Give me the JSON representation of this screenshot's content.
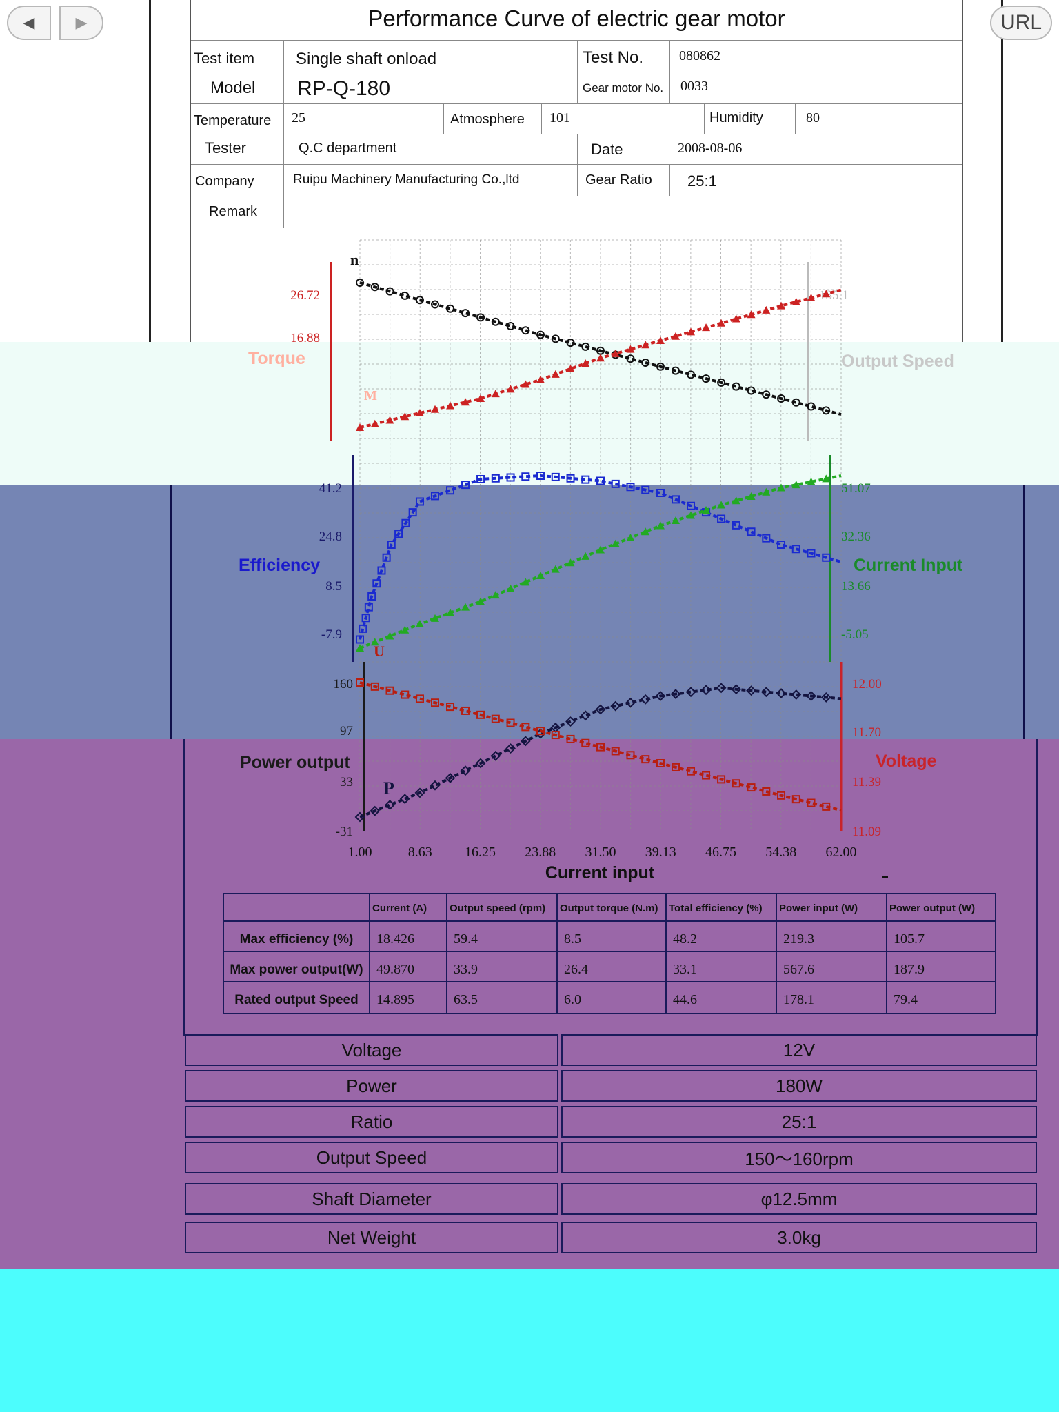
{
  "browser": {
    "back_icon": "◀",
    "forward_icon": "▶",
    "url_label": "URL"
  },
  "doc": {
    "title": "Performance Curve of electric gear motor",
    "info": {
      "test_item_label": "Test item",
      "test_item": "Single shaft onload",
      "test_no_label": "Test No.",
      "test_no": "080862",
      "model_label": "Model",
      "model": "RP-Q-180",
      "gear_motor_no_label": "Gear motor No.",
      "gear_motor_no": "0033",
      "temperature_label": "Temperature",
      "temperature": "25",
      "atmosphere_label": "Atmosphere",
      "atmosphere": "101",
      "humidity_label": "Humidity",
      "humidity": "80",
      "tester_label": "Tester",
      "tester": "Q.C department",
      "date_label": "Date",
      "date": "2008-08-06",
      "company_label": "Company",
      "company": "Ruipu Machinery Manufacturing Co.,ltd",
      "gear_ratio_label": "Gear Ratio",
      "gear_ratio": "25:1",
      "remark_label": "Remark",
      "remark": ""
    }
  },
  "chart_data": {
    "type": "line",
    "xlabel": "Current input",
    "x_ticks": [
      "1.00",
      "8.63",
      "16.25",
      "23.88",
      "31.50",
      "39.13",
      "46.75",
      "54.38",
      "62.00"
    ],
    "xlim": [
      1.0,
      62.0
    ],
    "grid": true,
    "panels": [
      {
        "left_label": "Torque",
        "right_label": "Output Speed",
        "left_ticks": [
          "26.72",
          "16.88"
        ],
        "right_ticks": [
          "135.1"
        ],
        "series": [
          {
            "name": "Output Speed",
            "marker": "circle",
            "color": "#111111",
            "x": [
              1.0,
              8.6,
              16.3,
              23.9,
              31.5,
              39.1,
              46.8,
              54.4,
              62.0
            ],
            "y": [
              1.0,
              0.88,
              0.76,
              0.64,
              0.53,
              0.42,
              0.31,
              0.2,
              0.09
            ]
          },
          {
            "name": "Torque",
            "marker": "triangle",
            "color": "#cc2222",
            "x": [
              1.0,
              8.6,
              16.3,
              23.9,
              31.5,
              39.1,
              46.8,
              54.4,
              62.0
            ],
            "y": [
              0.0,
              0.1,
              0.2,
              0.33,
              0.48,
              0.6,
              0.72,
              0.84,
              0.95
            ]
          }
        ]
      },
      {
        "left_label": "Efficiency",
        "right_label": "Current Input",
        "left_ticks": [
          "41.2",
          "24.8",
          "8.5",
          "-7.9"
        ],
        "right_ticks": [
          "51.07",
          "32.36",
          "13.66",
          "-5.05"
        ],
        "series": [
          {
            "name": "Efficiency",
            "marker": "square",
            "color": "#1a2ad0",
            "x": [
              1.0,
              2.5,
              5.0,
              8.6,
              16.3,
              23.9,
              31.5,
              39.1,
              46.8,
              54.4,
              62.0
            ],
            "y": [
              0.05,
              0.3,
              0.6,
              0.85,
              0.98,
              1.0,
              0.97,
              0.9,
              0.75,
              0.6,
              0.5
            ]
          },
          {
            "name": "Current Input",
            "marker": "triangle",
            "color": "#22aa22",
            "x": [
              1.0,
              8.6,
              16.3,
              23.9,
              31.5,
              39.1,
              46.8,
              54.4,
              62.0
            ],
            "y": [
              0.0,
              0.14,
              0.27,
              0.42,
              0.57,
              0.71,
              0.83,
              0.93,
              1.0
            ]
          }
        ]
      },
      {
        "left_label": "Power output",
        "right_label": "Voltage",
        "left_ticks": [
          "160",
          "97",
          "33",
          "-31"
        ],
        "right_ticks": [
          "12.00",
          "11.70",
          "11.39",
          "11.09"
        ],
        "series": [
          {
            "name": "Power output",
            "marker": "diamond",
            "color": "#141440",
            "x": [
              1.0,
              8.6,
              16.3,
              23.9,
              31.5,
              39.1,
              46.8,
              54.4,
              62.0
            ],
            "y": [
              0.0,
              0.18,
              0.4,
              0.62,
              0.8,
              0.9,
              0.96,
              0.92,
              0.88
            ]
          },
          {
            "name": "Voltage",
            "marker": "square",
            "color": "#b81e10",
            "x": [
              1.0,
              8.6,
              16.3,
              23.9,
              31.5,
              39.1,
              46.8,
              54.4,
              62.0
            ],
            "y": [
              1.0,
              0.88,
              0.76,
              0.64,
              0.52,
              0.4,
              0.28,
              0.16,
              0.05
            ]
          }
        ]
      }
    ],
    "marker_labels": {
      "speed": "n",
      "torque": "M",
      "voltage": "U",
      "power": "P"
    }
  },
  "results": {
    "headers": [
      "",
      "Current (A)",
      "Output speed (rpm)",
      "Output torque (N.m)",
      "Total efficiency (%)",
      "Power input (W)",
      "Power output (W)"
    ],
    "rows": [
      [
        "Max efficiency (%)",
        "18.426",
        "59.4",
        "8.5",
        "48.2",
        "219.3",
        "105.7"
      ],
      [
        "Max power output(W)",
        "49.870",
        "33.9",
        "26.4",
        "33.1",
        "567.6",
        "187.9"
      ],
      [
        "Rated output Speed",
        "14.895",
        "63.5",
        "6.0",
        "44.6",
        "178.1",
        "79.4"
      ]
    ]
  },
  "specs": [
    {
      "label": "Voltage",
      "value": "12V"
    },
    {
      "label": "Power",
      "value": "180W"
    },
    {
      "label": "Ratio",
      "value": "25:1"
    },
    {
      "label": "Output Speed",
      "value": "150～160rpm"
    },
    {
      "label": "Shaft  Diameter",
      "value": "φ12.5mm"
    },
    {
      "label": "Net Weight",
      "value": "3.0kg"
    }
  ],
  "colors": {
    "band_white": "#ffffff",
    "band_mint": "#eefcf8",
    "band_blue": "#7585b4",
    "band_purple": "#9a67a8",
    "band_cyan": "#4cfdfd"
  }
}
